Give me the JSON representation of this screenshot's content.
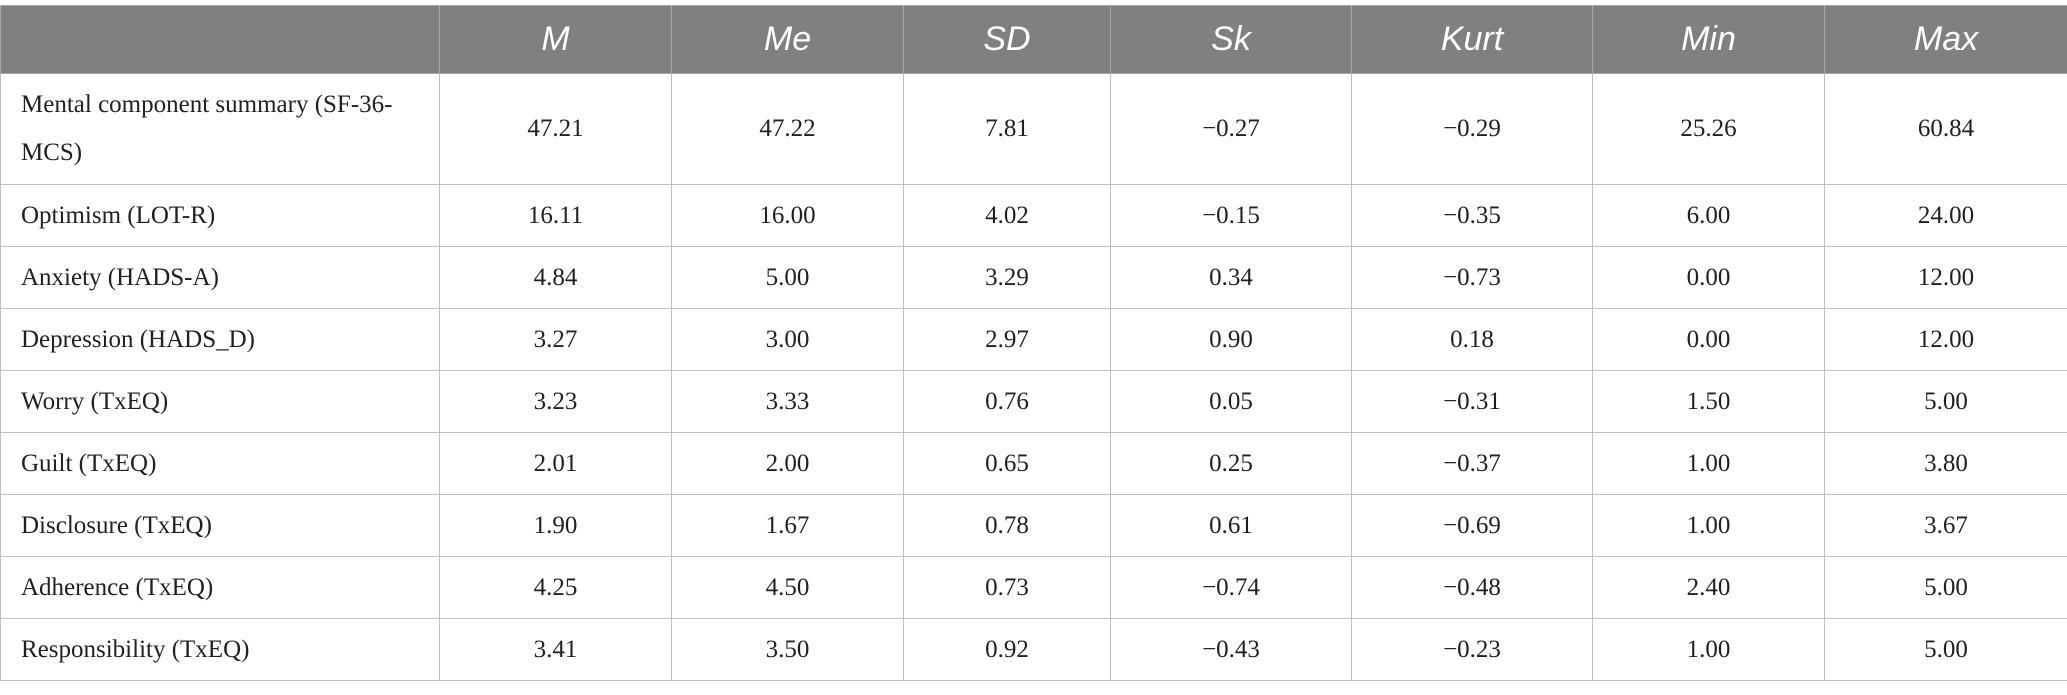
{
  "columns": [
    "",
    "M",
    "Me",
    "SD",
    "Sk",
    "Kurt",
    "Min",
    "Max"
  ],
  "rows": [
    {
      "label": "Mental component summary (SF-36-MCS)",
      "values": [
        "47.21",
        "47.22",
        "7.81",
        "−0.27",
        "−0.29",
        "25.26",
        "60.84"
      ]
    },
    {
      "label": "Optimism (LOT-R)",
      "values": [
        "16.11",
        "16.00",
        "4.02",
        "−0.15",
        "−0.35",
        "6.00",
        "24.00"
      ]
    },
    {
      "label": "Anxiety (HADS-A)",
      "values": [
        "4.84",
        "5.00",
        "3.29",
        "0.34",
        "−0.73",
        "0.00",
        "12.00"
      ]
    },
    {
      "label": "Depression (HADS_D)",
      "values": [
        "3.27",
        "3.00",
        "2.97",
        "0.90",
        "0.18",
        "0.00",
        "12.00"
      ]
    },
    {
      "label": "Worry (TxEQ)",
      "values": [
        "3.23",
        "3.33",
        "0.76",
        "0.05",
        "−0.31",
        "1.50",
        "5.00"
      ]
    },
    {
      "label": "Guilt (TxEQ)",
      "values": [
        "2.01",
        "2.00",
        "0.65",
        "0.25",
        "−0.37",
        "1.00",
        "3.80"
      ]
    },
    {
      "label": "Disclosure (TxEQ)",
      "values": [
        "1.90",
        "1.67",
        "0.78",
        "0.61",
        "−0.69",
        "1.00",
        "3.67"
      ]
    },
    {
      "label": "Adherence (TxEQ)",
      "values": [
        "4.25",
        "4.50",
        "0.73",
        "−0.74",
        "−0.48",
        "2.40",
        "5.00"
      ]
    },
    {
      "label": "Responsibility (TxEQ)",
      "values": [
        "3.41",
        "3.50",
        "0.92",
        "−0.43",
        "−0.23",
        "1.00",
        "5.00"
      ]
    }
  ]
}
